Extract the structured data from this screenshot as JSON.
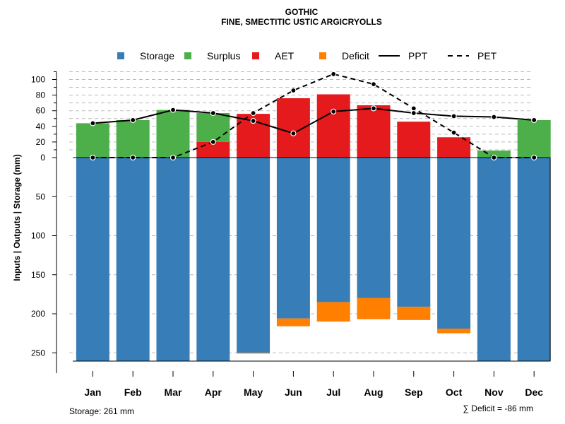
{
  "chart_data": {
    "type": "bar",
    "title": "GOTHIC",
    "subtitle": "FINE, SMECTITIC USTIC ARGICRYOLLS",
    "ylabel": "Inputs | Outputs | Storage    (mm)",
    "categories": [
      "Jan",
      "Feb",
      "Mar",
      "Apr",
      "May",
      "Jun",
      "Jul",
      "Aug",
      "Sep",
      "Oct",
      "Nov",
      "Dec"
    ],
    "ylim": [
      -261,
      110
    ],
    "upper_ticks": [
      0,
      20,
      40,
      60,
      80,
      100
    ],
    "lower_ticks": [
      50,
      100,
      150,
      200,
      250
    ],
    "legend": [
      {
        "label": "Storage",
        "kind": "box",
        "color": "#377EB8"
      },
      {
        "label": "Surplus",
        "kind": "box",
        "color": "#4DAF4A"
      },
      {
        "label": "AET",
        "kind": "box",
        "color": "#E41A1C"
      },
      {
        "label": "Deficit",
        "kind": "box",
        "color": "#FF7F00"
      },
      {
        "label": "PPT",
        "kind": "solid"
      },
      {
        "label": "PET",
        "kind": "dashed"
      }
    ],
    "series": [
      {
        "name": "Storage",
        "color": "#377EB8",
        "values": [
          261,
          261,
          261,
          261,
          250,
          206,
          185,
          180,
          191,
          219,
          261,
          261
        ]
      },
      {
        "name": "Deficit",
        "color": "#FF7F00",
        "values": [
          0,
          0,
          0,
          0,
          1,
          10,
          25,
          27,
          17,
          6,
          0,
          0
        ]
      },
      {
        "name": "Surplus",
        "color": "#4DAF4A",
        "values": [
          44,
          48,
          61,
          37,
          0,
          0,
          0,
          0,
          0,
          0,
          9,
          48
        ]
      },
      {
        "name": "AET",
        "color": "#E41A1C",
        "values": [
          0,
          0,
          0,
          20,
          56,
          76,
          81,
          67,
          46,
          26,
          0,
          0
        ]
      },
      {
        "name": "PPT",
        "values": [
          44,
          48,
          61,
          57,
          47,
          31,
          59,
          63,
          57,
          53,
          52,
          48
        ]
      },
      {
        "name": "PET",
        "values": [
          0,
          0,
          0,
          20,
          57,
          86,
          107,
          94,
          63,
          32,
          0,
          0
        ]
      }
    ],
    "storage_note": "Storage: 261 mm",
    "deficit_note": "∑ Deficit = -86 mm"
  }
}
